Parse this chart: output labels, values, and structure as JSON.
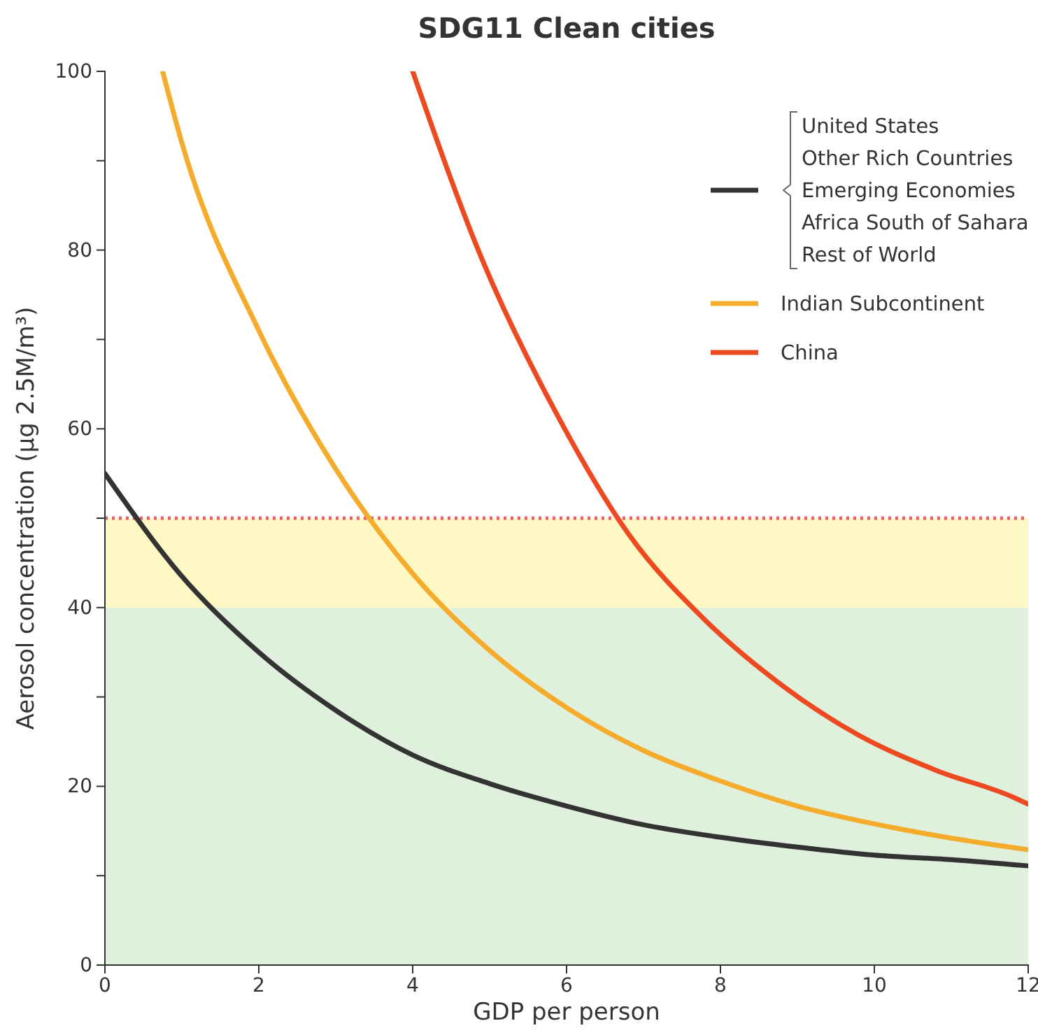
{
  "chart_data": {
    "type": "line",
    "title": "SDG11 Clean cities",
    "xlabel": "GDP per person",
    "ylabel": "Aerosol concentration (µg 2.5M/m³)",
    "xlim": [
      0,
      12
    ],
    "xticks": [
      0,
      2,
      4,
      6,
      8,
      10,
      12
    ],
    "ylim": [
      0,
      100
    ],
    "yticks": [
      0,
      {
        "value": 10,
        "label": null
      },
      20,
      {
        "value": 30,
        "label": null
      },
      40,
      {
        "value": 50,
        "label": null
      },
      60,
      {
        "value": 70,
        "label": null
      },
      80,
      {
        "value": 90,
        "label": null
      },
      100
    ],
    "grid": false,
    "legend": "top right",
    "line_style": "solid",
    "marker": "none",
    "bands": [
      {
        "axis": "y",
        "from": 0,
        "to": 40,
        "color": "#dff0dc"
      },
      {
        "axis": "y",
        "from": 40,
        "to": 50,
        "color": "#fdf8c4"
      }
    ],
    "ref_lines": [
      {
        "axis": "y",
        "value": 50,
        "color": "#e8606a",
        "line_style": "dotted"
      }
    ],
    "series": [
      {
        "name": "United States\nOther Rich Countries\nEmerging Economies\nAfrica South of Sahara\nRest of World",
        "color": "#333333",
        "x": [
          0,
          1,
          2,
          3,
          4,
          5,
          6,
          7,
          8,
          9,
          10,
          11,
          12
        ],
        "values": [
          55,
          43.5,
          35,
          28.5,
          23.5,
          20.3,
          17.8,
          15.7,
          14.3,
          13.2,
          12.3,
          11.8,
          11.1
        ]
      },
      {
        "name": "Indian Subcontinent",
        "color": "#f5ab2b",
        "x": [
          0.75,
          1,
          2,
          3,
          4,
          5,
          6,
          7,
          8,
          9,
          10,
          11,
          12
        ],
        "values": [
          100,
          92,
          71,
          55.5,
          43.8,
          35.2,
          28.8,
          24,
          20.6,
          17.8,
          15.8,
          14.2,
          12.9
        ]
      },
      {
        "name": "China",
        "color": "#ee4a22",
        "x": [
          4,
          4.9,
          5.9,
          6.8,
          7.8,
          8.8,
          9.8,
          10.8,
          11.8,
          12
        ],
        "values": [
          100,
          79,
          61.2,
          48.3,
          38.6,
          31.3,
          25.7,
          21.8,
          18.8,
          18
        ]
      }
    ]
  }
}
